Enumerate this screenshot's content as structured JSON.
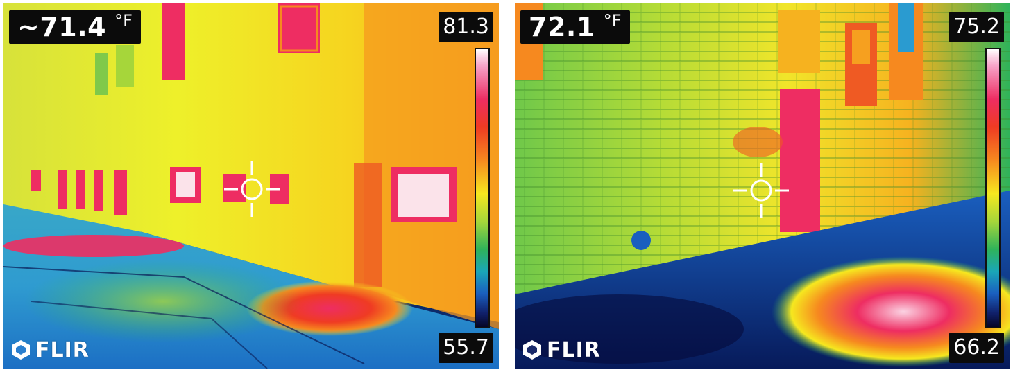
{
  "panels": [
    {
      "spot_temperature": "~71.4",
      "unit": "°F",
      "scale_max": "81.3",
      "scale_min": "55.7",
      "logo_text": "FLIR"
    },
    {
      "spot_temperature": "72.1",
      "unit": "°F",
      "scale_max": "75.2",
      "scale_min": "66.2",
      "logo_text": "FLIR"
    }
  ],
  "palette": {
    "hot": "#ffffff",
    "warm_red": "#ee2d62",
    "orange": "#f6891f",
    "yellow": "#f6e81f",
    "green": "#2fb35a",
    "cool_blue": "#1a5fbf",
    "cold": "#050525"
  }
}
